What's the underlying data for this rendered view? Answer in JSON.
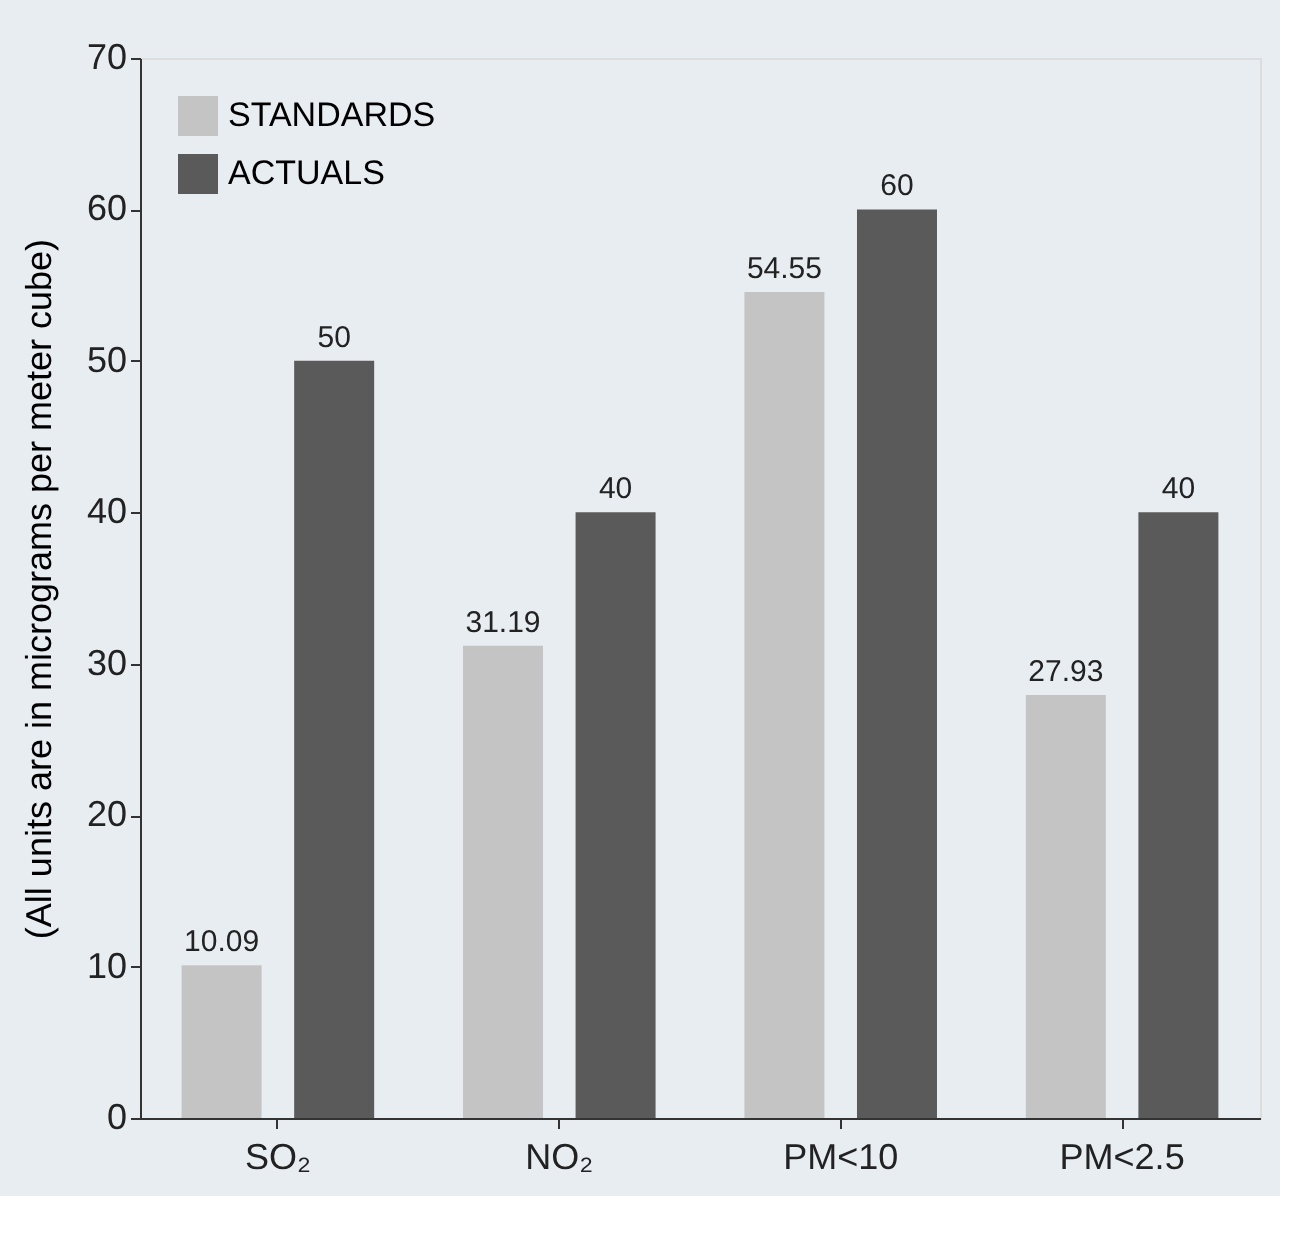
{
  "chart_data": {
    "type": "bar",
    "ylabel": "(All units are in micrograms per meter cube)",
    "categories": [
      "SO₂",
      "NO₂",
      "PM<10",
      "PM<2.5"
    ],
    "series": [
      {
        "name": "STANDARDS",
        "color": "#c4c4c4",
        "values": [
          10.09,
          31.19,
          54.55,
          27.93
        ]
      },
      {
        "name": "ACTUALS",
        "color": "#5a5a5a",
        "values": [
          50,
          40,
          60,
          40
        ]
      }
    ],
    "ylim": [
      0,
      70
    ],
    "yticks": [
      0,
      10,
      20,
      30,
      40,
      50,
      60,
      70
    ],
    "grid": false,
    "legend": "top left",
    "data_labels": true
  }
}
